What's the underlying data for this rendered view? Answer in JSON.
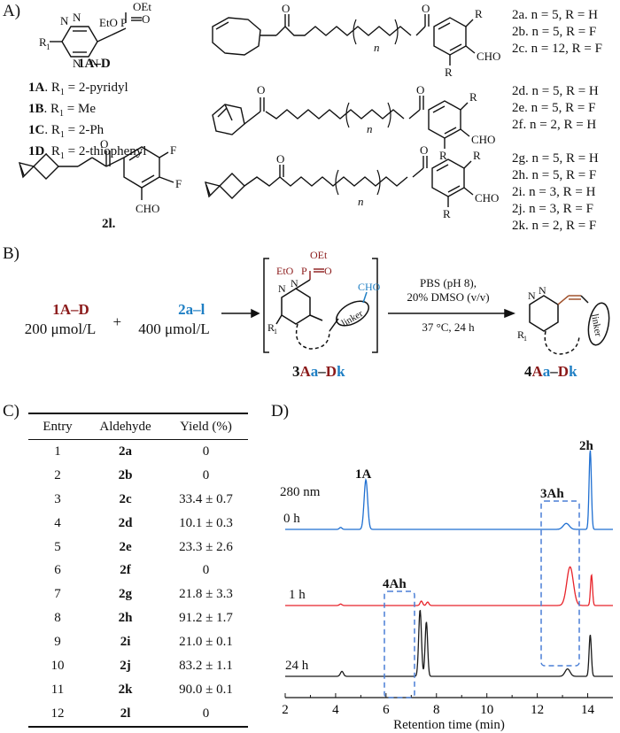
{
  "panels": {
    "a": "A)",
    "b": "B)",
    "c": "C)",
    "d": "D)"
  },
  "colors": {
    "dark_red": "#8b1a1a",
    "blue": "#1f7fc4",
    "linker_red": "#a0522d"
  },
  "panel_a": {
    "tetrazine_label": "1A–D",
    "tetrazine_groups": {
      "r1": "R",
      "r1_sub": "1",
      "ethoxy_left": "EtO",
      "ethoxy_top": "OEt",
      "phosphorus": "P",
      "oxygen": "O"
    },
    "tetrazine_list": [
      {
        "id": "1A",
        "text": ". R",
        "sub": "1",
        "rest": " = 2-pyridyl"
      },
      {
        "id": "1B",
        "text": ". R",
        "sub": "1",
        "rest": " = Me"
      },
      {
        "id": "1C",
        "text": ". R",
        "sub": "1",
        "rest": " = 2-Ph"
      },
      {
        "id": "1D",
        "text": ". R",
        "sub": "1",
        "rest": " = 2-thiophenyl"
      }
    ],
    "spiro_label": "2l.",
    "struct_labels": {
      "cho": "CHO",
      "f": "F",
      "r": "R",
      "n": "n",
      "h": "H",
      "o": "O"
    },
    "aldehyde_groups": [
      [
        "2a. n = 5, R = H",
        "2b. n = 5, R = F",
        "2c. n = 12, R = F"
      ],
      [
        "2d. n = 5, R = H",
        "2e. n = 5, R = F",
        "2f.  n = 2, R = H"
      ],
      [
        "2g. n = 5, R = H",
        "2h. n = 5, R = F",
        "2i.  n = 3, R = H",
        "2j.  n = 3, R = F",
        "2k. n = 2, R = F"
      ]
    ]
  },
  "panel_b": {
    "reactant1": "1A–D",
    "reactant2": "2a–l",
    "plus": "+",
    "conc1": "200 μmol/L",
    "conc2": "400 μmol/L",
    "intermediate_groups": {
      "oet": "OEt",
      "eto": "EtO",
      "p": "P",
      "o": "O",
      "n": "N",
      "r1": "R",
      "r1_sub": "1",
      "cho": "CHO",
      "linker": "linker"
    },
    "intermediate_label": {
      "a": "3",
      "b": "A",
      "c": "a",
      "d": "–",
      "e": "D",
      "f": "k"
    },
    "conditions_top": [
      "PBS (pH 8),",
      "20% DMSO (v/v)"
    ],
    "conditions_bottom": "37 °C, 24 h",
    "product_label": {
      "a": "4",
      "b": "A",
      "c": "a",
      "d": "–",
      "e": "D",
      "f": "k"
    }
  },
  "table": {
    "headers": [
      "Entry",
      "Aldehyde",
      "Yield (%)"
    ],
    "rows": [
      [
        "1",
        "2a",
        "0"
      ],
      [
        "2",
        "2b",
        "0"
      ],
      [
        "3",
        "2c",
        "33.4 ± 0.7"
      ],
      [
        "4",
        "2d",
        "10.1 ± 0.3"
      ],
      [
        "5",
        "2e",
        "23.3 ± 2.6"
      ],
      [
        "6",
        "2f",
        "0"
      ],
      [
        "7",
        "2g",
        "21.8 ± 3.3"
      ],
      [
        "8",
        "2h",
        "91.2 ± 1.7"
      ],
      [
        "9",
        "2i",
        "21.0 ± 0.1"
      ],
      [
        "10",
        "2j",
        "83.2 ± 1.1"
      ],
      [
        "11",
        "2k",
        "90.0 ± 0.1"
      ],
      [
        "12",
        "2l",
        "0"
      ]
    ]
  },
  "chart_data": {
    "type": "line",
    "xlabel": "Retention time (min)",
    "xlim": [
      2,
      15
    ],
    "x_ticks": [
      2,
      4,
      6,
      8,
      10,
      12,
      14
    ],
    "wavelength": "280 nm",
    "peak_labels": [
      "1A",
      "2h",
      "3Ah",
      "4Ah"
    ],
    "series": [
      {
        "name": "0 h",
        "color": "#1f6fd1",
        "peaks": [
          {
            "x": 4.2,
            "h": 0.04,
            "w": 0.05
          },
          {
            "x": 5.2,
            "h": 1.0,
            "w": 0.07
          },
          {
            "x": 13.15,
            "h": 0.12,
            "w": 0.12
          },
          {
            "x": 14.1,
            "h": 1.6,
            "w": 0.045
          }
        ]
      },
      {
        "name": "1 h",
        "color": "#e8232a",
        "peaks": [
          {
            "x": 4.2,
            "h": 0.03,
            "w": 0.05
          },
          {
            "x": 7.4,
            "h": 0.09,
            "w": 0.05
          },
          {
            "x": 7.65,
            "h": 0.07,
            "w": 0.05
          },
          {
            "x": 13.3,
            "h": 0.78,
            "w": 0.13
          },
          {
            "x": 14.15,
            "h": 0.62,
            "w": 0.04
          }
        ]
      },
      {
        "name": "24 h",
        "color": "#1a1a1a",
        "peaks": [
          {
            "x": 4.25,
            "h": 0.1,
            "w": 0.06
          },
          {
            "x": 7.35,
            "h": 1.34,
            "w": 0.055
          },
          {
            "x": 7.6,
            "h": 1.1,
            "w": 0.05
          },
          {
            "x": 13.2,
            "h": 0.15,
            "w": 0.1
          },
          {
            "x": 14.1,
            "h": 0.84,
            "w": 0.045
          }
        ]
      }
    ]
  }
}
